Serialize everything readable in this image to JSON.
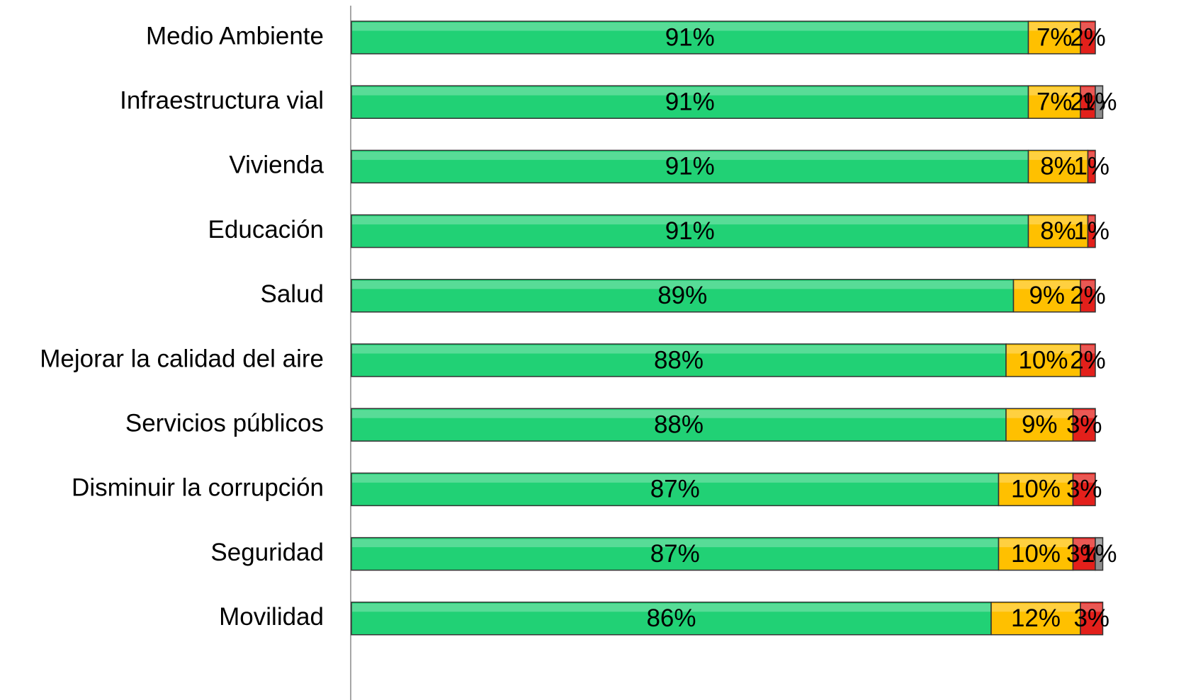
{
  "chart_data": {
    "type": "stacked-barh",
    "categories": [
      "Medio Ambiente",
      "Infraestructura vial",
      "Vivienda",
      "Educación",
      "Salud",
      "Mejorar la calidad del aire",
      "Servicios públicos",
      "Disminuir la corrupción",
      "Seguridad",
      "Movilidad"
    ],
    "xlim": [
      0,
      100
    ],
    "series": [
      {
        "color": "#21d175",
        "values": [
          91,
          91,
          91,
          91,
          89,
          88,
          88,
          87,
          87,
          86
        ],
        "value_labels": [
          "91%",
          "91%",
          "91%",
          "91%",
          "89%",
          "88%",
          "88%",
          "87%",
          "87%",
          "86%"
        ]
      },
      {
        "color": "#ffc000",
        "values": [
          7,
          7,
          8,
          8,
          9,
          10,
          9,
          10,
          10,
          12
        ],
        "value_labels": [
          "7%",
          "7%",
          "8%",
          "8%",
          "9%",
          "10%",
          "9%",
          "10%",
          "10%",
          "12%"
        ]
      },
      {
        "color": "#e3201b",
        "values": [
          2,
          2,
          1,
          1,
          2,
          2,
          3,
          3,
          3,
          3
        ],
        "value_labels": [
          "2%",
          "2%",
          "1%",
          "1%",
          "2%",
          "2%",
          "3%",
          "3%",
          "3%",
          "3%"
        ]
      },
      {
        "color": "#8c8c8c",
        "values": [
          null,
          1,
          null,
          null,
          null,
          null,
          null,
          null,
          1,
          null
        ],
        "value_labels": [
          null,
          "1%",
          null,
          null,
          null,
          null,
          null,
          null,
          "1%",
          null
        ]
      }
    ]
  }
}
